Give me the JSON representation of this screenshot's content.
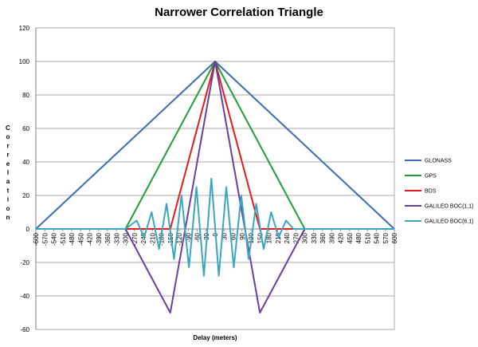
{
  "chart_data": {
    "type": "line",
    "title": "Narrower Correlation Triangle",
    "xlabel": "Delay (meters)",
    "ylabel": "Correlation",
    "xlim": [
      -600,
      600
    ],
    "ylim": [
      -60,
      120
    ],
    "y_ticks": [
      -60,
      -40,
      -20,
      0,
      20,
      40,
      60,
      80,
      100,
      120
    ],
    "x_ticks": [
      -600,
      -570,
      -540,
      -510,
      -480,
      -450,
      -420,
      -390,
      -360,
      -330,
      -300,
      -270,
      -240,
      -210,
      -180,
      -150,
      -120,
      -90,
      -60,
      -30,
      0,
      30,
      60,
      90,
      120,
      150,
      180,
      210,
      240,
      270,
      300,
      330,
      360,
      390,
      420,
      450,
      480,
      510,
      540,
      570,
      600
    ],
    "grid": true,
    "legend_position": "right",
    "series": [
      {
        "name": "GLONASS",
        "color": "#3b6db3",
        "x": [
          -600,
          0,
          600
        ],
        "y": [
          0,
          100,
          0
        ]
      },
      {
        "name": "GPS",
        "color": "#1e9f3a",
        "x": [
          -600,
          -300,
          0,
          300,
          600
        ],
        "y": [
          0,
          0,
          100,
          0,
          0
        ]
      },
      {
        "name": "BDS",
        "color": "#e8191b",
        "x": [
          -600,
          -150,
          0,
          150,
          600
        ],
        "y": [
          0,
          0,
          100,
          0,
          0
        ]
      },
      {
        "name": "GALILEO BOC(1,1)",
        "color": "#6a3ea0",
        "x": [
          -600,
          -300,
          -150,
          0,
          150,
          300,
          600
        ],
        "y": [
          0,
          0,
          -50,
          100,
          -50,
          0,
          0
        ]
      },
      {
        "name": "GALILEO BOC(6,1)",
        "color": "#3aa6c0",
        "x": [
          -600,
          -300,
          -262.5,
          -237.5,
          -212.5,
          -187.5,
          -162.5,
          -137.5,
          -112.5,
          -87.5,
          -62.5,
          -37.5,
          -12.5,
          12.5,
          37.5,
          62.5,
          87.5,
          112.5,
          137.5,
          162.5,
          187.5,
          212.5,
          237.5,
          262.5,
          300,
          600
        ],
        "y": [
          0,
          0,
          5,
          -5,
          10,
          -12,
          15,
          -18,
          20,
          -23,
          25,
          -28,
          30,
          -28,
          25,
          -23,
          20,
          -18,
          15,
          -12,
          10,
          -5,
          5,
          0,
          0,
          0
        ]
      }
    ]
  }
}
